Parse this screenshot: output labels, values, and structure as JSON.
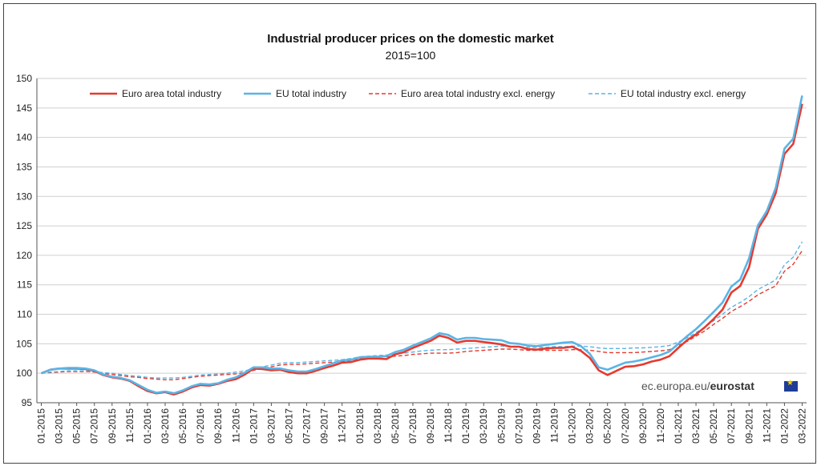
{
  "colors": {
    "ea_total": "#e53a30",
    "eu_total": "#5ab4e5",
    "ea_excl": "#e53a30",
    "eu_excl": "#5ab4e5"
  },
  "source_credit": {
    "site": "ec.europa.eu/",
    "brand": "eurostat"
  },
  "chart_data": {
    "type": "line",
    "title": "Industrial producer prices on the domestic market",
    "subtitle": "2015=100",
    "xlabel": "",
    "ylabel": "",
    "ylim": [
      95,
      150
    ],
    "yticks": [
      95,
      100,
      105,
      110,
      115,
      120,
      125,
      130,
      135,
      140,
      145,
      150
    ],
    "grid": true,
    "legend_position": "top",
    "x": [
      "01-2015",
      "02-2015",
      "03-2015",
      "04-2015",
      "05-2015",
      "06-2015",
      "07-2015",
      "08-2015",
      "09-2015",
      "10-2015",
      "11-2015",
      "12-2015",
      "01-2016",
      "02-2016",
      "03-2016",
      "04-2016",
      "05-2016",
      "06-2016",
      "07-2016",
      "08-2016",
      "09-2016",
      "10-2016",
      "11-2016",
      "12-2016",
      "01-2017",
      "02-2017",
      "03-2017",
      "04-2017",
      "05-2017",
      "06-2017",
      "07-2017",
      "08-2017",
      "09-2017",
      "10-2017",
      "11-2017",
      "12-2017",
      "01-2018",
      "02-2018",
      "03-2018",
      "04-2018",
      "05-2018",
      "06-2018",
      "07-2018",
      "08-2018",
      "09-2018",
      "10-2018",
      "11-2018",
      "12-2018",
      "01-2019",
      "02-2019",
      "03-2019",
      "04-2019",
      "05-2019",
      "06-2019",
      "07-2019",
      "08-2019",
      "09-2019",
      "10-2019",
      "11-2019",
      "12-2019",
      "01-2020",
      "02-2020",
      "03-2020",
      "04-2020",
      "05-2020",
      "06-2020",
      "07-2020",
      "08-2020",
      "09-2020",
      "10-2020",
      "11-2020",
      "12-2020",
      "01-2021",
      "02-2021",
      "03-2021",
      "04-2021",
      "05-2021",
      "06-2021",
      "07-2021",
      "08-2021",
      "09-2021",
      "10-2021",
      "11-2021",
      "12-2021",
      "01-2022",
      "02-2022",
      "03-2022"
    ],
    "x_tick_labels": [
      "01-2015",
      "03-2015",
      "05-2015",
      "07-2015",
      "09-2015",
      "11-2015",
      "01-2016",
      "03-2016",
      "05-2016",
      "07-2016",
      "09-2016",
      "11-2016",
      "01-2017",
      "03-2017",
      "05-2017",
      "07-2017",
      "09-2017",
      "11-2017",
      "01-2018",
      "03-2018",
      "05-2018",
      "07-2018",
      "09-2018",
      "11-2018",
      "01-2019",
      "03-2019",
      "05-2019",
      "07-2019",
      "09-2019",
      "11-2019",
      "01-2020",
      "03-2020",
      "05-2020",
      "07-2020",
      "09-2020",
      "11-2020",
      "01-2021",
      "03-2021",
      "05-2021",
      "07-2021",
      "09-2021",
      "11-2021",
      "01-2022",
      "03-2022"
    ],
    "series": [
      {
        "name": "Euro area total industry",
        "style": "solid",
        "values": [
          100.0,
          100.6,
          100.8,
          100.8,
          100.8,
          100.7,
          100.4,
          99.7,
          99.3,
          99.1,
          98.7,
          97.8,
          97.0,
          96.6,
          96.8,
          96.4,
          96.9,
          97.6,
          98.0,
          97.9,
          98.2,
          98.7,
          99.0,
          99.8,
          100.8,
          100.7,
          100.5,
          100.6,
          100.2,
          100.0,
          100.0,
          100.4,
          100.9,
          101.3,
          101.8,
          101.9,
          102.3,
          102.5,
          102.5,
          102.4,
          103.2,
          103.6,
          104.3,
          104.9,
          105.5,
          106.4,
          106.0,
          105.2,
          105.5,
          105.5,
          105.3,
          105.1,
          104.9,
          104.5,
          104.5,
          104.1,
          104.0,
          104.2,
          104.3,
          104.3,
          104.5,
          103.8,
          102.6,
          100.5,
          99.7,
          100.4,
          101.1,
          101.2,
          101.5,
          102.0,
          102.3,
          102.9,
          104.3,
          105.6,
          106.6,
          107.8,
          109.2,
          110.8,
          113.7,
          114.8,
          118.0,
          124.5,
          126.9,
          130.5,
          137.2,
          138.9,
          145.7
        ]
      },
      {
        "name": "EU total industry",
        "style": "solid",
        "values": [
          100.0,
          100.6,
          100.8,
          100.9,
          100.9,
          100.8,
          100.5,
          99.8,
          99.4,
          99.2,
          98.8,
          98.0,
          97.2,
          96.7,
          96.9,
          96.6,
          97.1,
          97.8,
          98.2,
          98.1,
          98.3,
          98.9,
          99.3,
          100.1,
          101.0,
          101.0,
          100.8,
          100.8,
          100.5,
          100.3,
          100.3,
          100.7,
          101.2,
          101.7,
          102.2,
          102.3,
          102.7,
          102.8,
          102.8,
          102.9,
          103.6,
          104.0,
          104.7,
          105.3,
          105.9,
          106.8,
          106.5,
          105.7,
          106.0,
          106.0,
          105.8,
          105.7,
          105.6,
          105.1,
          105.0,
          104.7,
          104.6,
          104.8,
          105.0,
          105.2,
          105.3,
          104.6,
          103.3,
          101.0,
          100.6,
          101.2,
          101.8,
          102.0,
          102.3,
          102.7,
          103.1,
          103.7,
          105.0,
          106.3,
          107.5,
          108.9,
          110.4,
          112.0,
          114.7,
          115.9,
          119.5,
          125.1,
          127.5,
          131.4,
          138.1,
          139.8,
          147.1
        ]
      },
      {
        "name": "Euro area total industry excl. energy",
        "style": "dashed",
        "values": [
          100.0,
          100.1,
          100.2,
          100.3,
          100.3,
          100.3,
          100.2,
          100.0,
          99.8,
          99.6,
          99.4,
          99.3,
          99.1,
          99.0,
          98.9,
          98.9,
          99.1,
          99.3,
          99.5,
          99.6,
          99.7,
          99.8,
          99.9,
          100.1,
          100.5,
          100.8,
          101.1,
          101.4,
          101.5,
          101.5,
          101.6,
          101.7,
          101.8,
          101.9,
          102.0,
          102.2,
          102.5,
          102.6,
          102.7,
          102.8,
          102.9,
          103.0,
          103.2,
          103.3,
          103.4,
          103.4,
          103.4,
          103.5,
          103.7,
          103.8,
          103.9,
          104.0,
          104.1,
          104.1,
          104.0,
          103.9,
          103.9,
          103.9,
          103.9,
          103.9,
          104.0,
          104.0,
          103.9,
          103.7,
          103.5,
          103.5,
          103.5,
          103.5,
          103.6,
          103.7,
          103.8,
          104.0,
          104.7,
          105.4,
          106.3,
          107.2,
          108.3,
          109.3,
          110.5,
          111.3,
          112.2,
          113.3,
          114.1,
          114.8,
          117.3,
          118.5,
          120.8
        ]
      },
      {
        "name": "EU total industry excl. energy",
        "style": "dashed",
        "values": [
          100.0,
          100.2,
          100.3,
          100.4,
          100.4,
          100.4,
          100.3,
          100.1,
          100.0,
          99.8,
          99.6,
          99.5,
          99.3,
          99.2,
          99.2,
          99.2,
          99.3,
          99.5,
          99.7,
          99.8,
          99.9,
          100.0,
          100.2,
          100.4,
          100.8,
          101.1,
          101.4,
          101.7,
          101.8,
          101.8,
          101.9,
          102.0,
          102.1,
          102.2,
          102.3,
          102.5,
          102.8,
          102.9,
          103.0,
          103.1,
          103.3,
          103.4,
          103.6,
          103.8,
          103.9,
          104.0,
          104.0,
          104.1,
          104.2,
          104.3,
          104.4,
          104.5,
          104.6,
          104.6,
          104.5,
          104.4,
          104.4,
          104.4,
          104.5,
          104.5,
          104.6,
          104.6,
          104.5,
          104.3,
          104.2,
          104.2,
          104.2,
          104.3,
          104.3,
          104.4,
          104.5,
          104.7,
          105.3,
          106.0,
          106.9,
          107.8,
          108.9,
          110.0,
          111.2,
          112.0,
          113.0,
          114.2,
          115.0,
          115.8,
          118.4,
          119.7,
          122.3
        ]
      }
    ]
  }
}
